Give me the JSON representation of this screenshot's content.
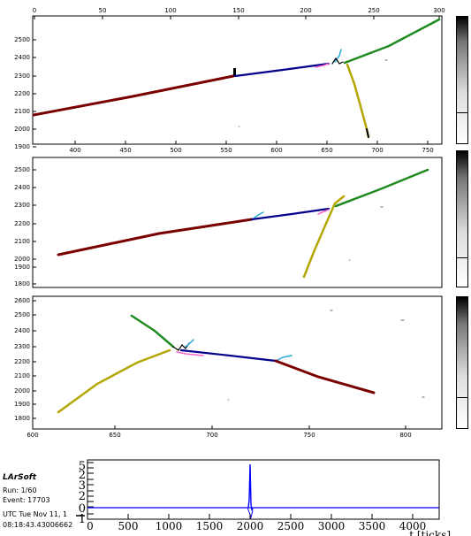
{
  "colors": {
    "red": "#7a0000",
    "blue": "#00008b",
    "green": "#1f8a1f",
    "yellow": "#b4a600",
    "pink": "#ff66cc",
    "cyan": "#2aa8d8",
    "black": "#000000",
    "wave": "#0000ff"
  },
  "views": [
    {
      "name": "view-0",
      "top_ticks": [
        "0",
        "50",
        "100",
        "150",
        "200",
        "250",
        "300"
      ],
      "left_ticks": [
        "2500",
        "2400",
        "2300",
        "2200",
        "2100",
        "2000",
        "1900"
      ],
      "bottom_ticks": [
        "400",
        "450",
        "500",
        "550",
        "600",
        "650",
        "700",
        "750"
      ]
    },
    {
      "name": "view-1",
      "left_ticks": [
        "2500",
        "2400",
        "2300",
        "2200",
        "2100",
        "2000",
        "1900",
        "1800"
      ]
    },
    {
      "name": "view-2",
      "left_ticks": [
        "2600",
        "2500",
        "2400",
        "2300",
        "2200",
        "2100",
        "2000",
        "1900",
        "1800"
      ],
      "bottom_ticks": [
        "600",
        "650",
        "700",
        "750",
        "800"
      ]
    }
  ],
  "info": {
    "title": "LArSoft",
    "run": "Run:   1/60",
    "event": "Event: 17703",
    "date": "UTC Tue Nov 11, 1",
    "time": "08:18:43.43006662"
  },
  "waveform": {
    "x_ticks": [
      "0",
      "500",
      "1000",
      "1500",
      "2000",
      "2500",
      "3000",
      "3500",
      "4000"
    ],
    "x_label": "t [ticks]",
    "x_range": [
      0,
      4400
    ],
    "spike_at": 2000
  }
}
